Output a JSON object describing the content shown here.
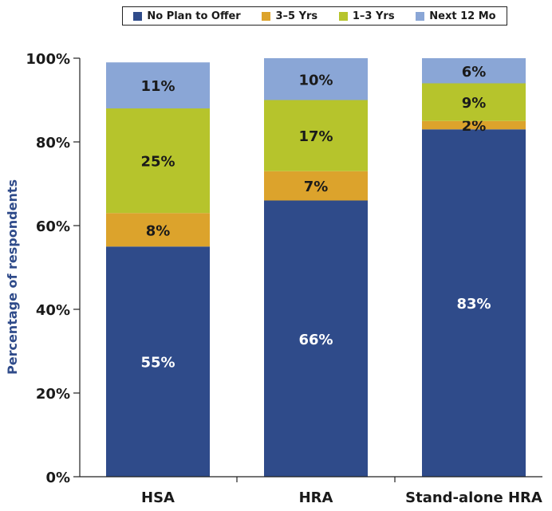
{
  "chart_data": {
    "type": "bar",
    "stacked": true,
    "categories": [
      "HSA",
      "HRA",
      "Stand-alone HRA"
    ],
    "series": [
      {
        "name": "No Plan to Offer",
        "values": [
          55,
          66,
          83
        ],
        "labels": [
          "55%",
          "66%",
          "83%"
        ],
        "color": "#2f4b8a",
        "label_color": "#ffffff"
      },
      {
        "name": "3–5 Yrs",
        "values": [
          8,
          7,
          2
        ],
        "labels": [
          "8%",
          "7%",
          "2%"
        ],
        "color": "#dca32c",
        "label_color": "#1a1a1a"
      },
      {
        "name": "1–3 Yrs",
        "values": [
          25,
          17,
          9
        ],
        "labels": [
          "25%",
          "17%",
          "9%"
        ],
        "color": "#b6c42c",
        "label_color": "#1a1a1a"
      },
      {
        "name": "Next 12 Mo",
        "values": [
          11,
          10,
          6
        ],
        "labels": [
          "11%",
          "10%",
          "6%"
        ],
        "color": "#8aa6d6",
        "label_color": "#1a1a1a"
      }
    ],
    "ylabel": "Percentage of respondents",
    "ylim": [
      0,
      100
    ],
    "yticks": [
      "0%",
      "20%",
      "40%",
      "60%",
      "80%",
      "100%"
    ],
    "legend_position": "top"
  }
}
